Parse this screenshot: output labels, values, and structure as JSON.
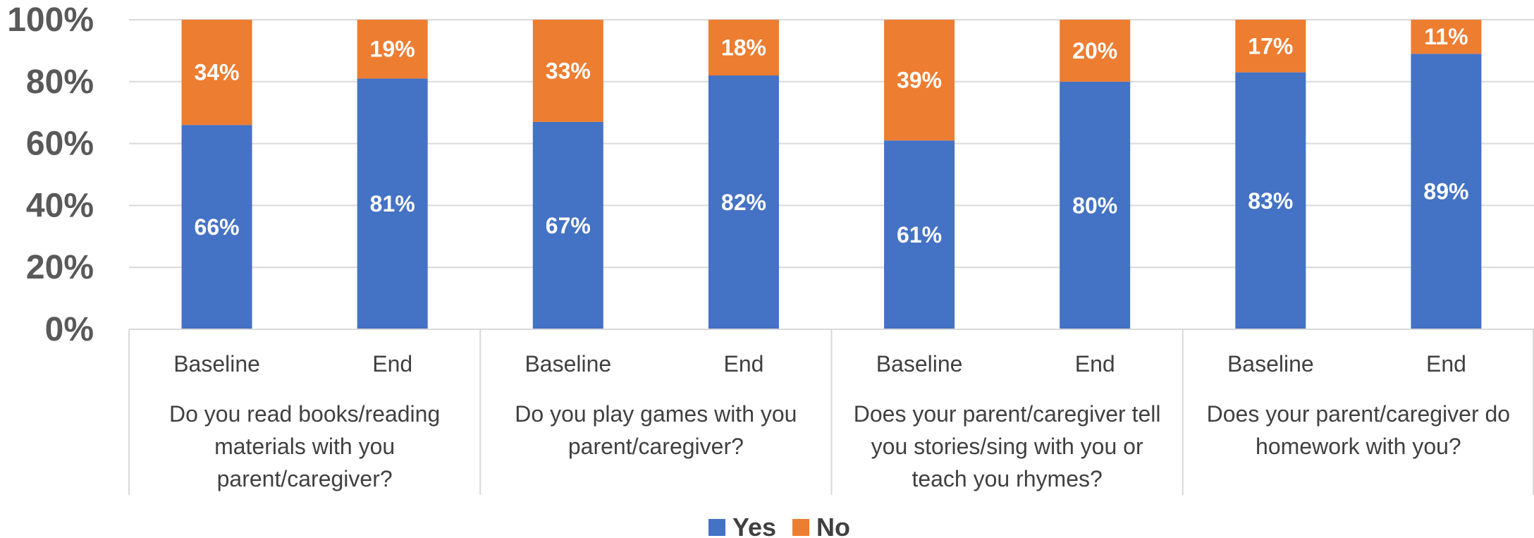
{
  "chart_data": {
    "type": "bar",
    "stacked": true,
    "y_axis": {
      "min": 0,
      "max": 100,
      "unit": "%",
      "ticks": [
        "0%",
        "20%",
        "40%",
        "60%",
        "80%",
        "100%"
      ]
    },
    "grid": true,
    "legend_position": "bottom",
    "categories": [
      "Baseline",
      "End",
      "Baseline",
      "End",
      "Baseline",
      "End",
      "Baseline",
      "End"
    ],
    "groups": [
      {
        "label_lines": [
          "Do you read books/reading",
          "materials with you",
          "parent/caregiver?"
        ]
      },
      {
        "label_lines": [
          "Do you play games with you",
          "parent/caregiver?"
        ]
      },
      {
        "label_lines": [
          "Does your parent/caregiver tell",
          "you stories/sing with you or",
          "teach you rhymes?"
        ]
      },
      {
        "label_lines": [
          "Does your parent/caregiver do",
          "homework with you?"
        ]
      }
    ],
    "series": [
      {
        "name": "Yes",
        "color": "#4472C4",
        "values": [
          66,
          81,
          67,
          82,
          61,
          80,
          83,
          89
        ],
        "labels": [
          "66%",
          "81%",
          "67%",
          "82%",
          "61%",
          "80%",
          "83%",
          "89%"
        ]
      },
      {
        "name": "No",
        "color": "#ED7D31",
        "values": [
          34,
          19,
          33,
          18,
          39,
          20,
          17,
          11
        ],
        "labels": [
          "34%",
          "19%",
          "33%",
          "18%",
          "39%",
          "20%",
          "17%",
          "11%"
        ]
      }
    ]
  }
}
